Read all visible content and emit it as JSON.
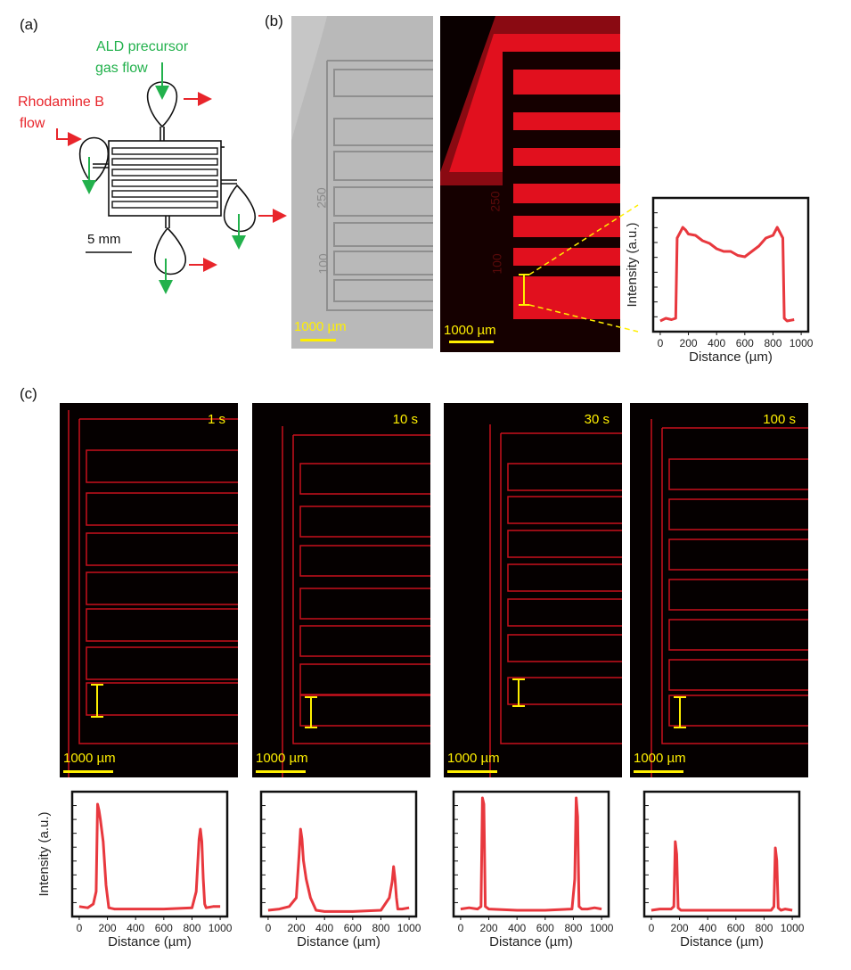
{
  "panel_labels": {
    "a": "(a)",
    "b": "(b)",
    "c": "(c)"
  },
  "panel_a": {
    "ald_label_line1": "ALD precursor",
    "ald_label_line2": "gas flow",
    "rhodamine_line1": "Rhodamine B",
    "rhodamine_line2": "flow",
    "scale_bar": "5 mm",
    "colors": {
      "ald": "#22b14c",
      "rhodamine": "#e8252b"
    }
  },
  "panel_b": {
    "scale_left": "1000 µm",
    "scale_right": "1000 µm",
    "engraved_top": "250",
    "engraved_bottom": "100",
    "engraved_top_right": "250",
    "engraved_bottom_right": "100"
  },
  "panel_c": {
    "images": [
      {
        "time": "1 s",
        "scale": "1000 µm"
      },
      {
        "time": "10 s",
        "scale": "1000 µm"
      },
      {
        "time": "30 s",
        "scale": "1000 µm"
      },
      {
        "time": "100 s",
        "scale": "1000 µm"
      }
    ]
  },
  "chart_data": [
    {
      "type": "line",
      "title": "",
      "xlabel": "Distance (µm)",
      "ylabel": "Intensity (a.u.)",
      "xlim": [
        -50,
        1050
      ],
      "xticks": [
        "0",
        "200",
        "400",
        "600",
        "800",
        "1000"
      ],
      "ylim": [
        0,
        1
      ],
      "series": [
        {
          "name": "",
          "x": [
            0,
            40,
            80,
            110,
            120,
            140,
            160,
            180,
            200,
            250,
            300,
            350,
            400,
            450,
            500,
            550,
            600,
            650,
            700,
            750,
            800,
            830,
            850,
            870,
            880,
            890,
            900,
            950
          ],
          "y": [
            0.08,
            0.1,
            0.09,
            0.1,
            0.7,
            0.74,
            0.78,
            0.76,
            0.73,
            0.72,
            0.68,
            0.66,
            0.62,
            0.6,
            0.6,
            0.57,
            0.56,
            0.6,
            0.64,
            0.7,
            0.72,
            0.78,
            0.74,
            0.7,
            0.1,
            0.09,
            0.08,
            0.09
          ]
        }
      ]
    },
    {
      "type": "line",
      "title": "1 s",
      "xlabel": "Distance (µm)",
      "ylabel": "Intensity (a.u.)",
      "xlim": [
        -50,
        1050
      ],
      "xticks": [
        "0",
        "200",
        "400",
        "600",
        "800",
        "1000"
      ],
      "ylim": [
        0,
        1
      ],
      "series": [
        {
          "name": "",
          "x": [
            0,
            60,
            100,
            120,
            130,
            140,
            150,
            170,
            190,
            210,
            250,
            400,
            600,
            800,
            830,
            850,
            860,
            870,
            880,
            890,
            900,
            950,
            1000
          ],
          "y": [
            0.08,
            0.07,
            0.1,
            0.2,
            0.9,
            0.85,
            0.78,
            0.6,
            0.25,
            0.07,
            0.06,
            0.06,
            0.06,
            0.07,
            0.2,
            0.62,
            0.7,
            0.6,
            0.3,
            0.1,
            0.07,
            0.08,
            0.08
          ]
        }
      ]
    },
    {
      "type": "line",
      "title": "10 s",
      "xlabel": "Distance (µm)",
      "ylabel": "Intensity (a.u.)",
      "xlim": [
        -50,
        1050
      ],
      "xticks": [
        "0",
        "200",
        "400",
        "600",
        "800",
        "1000"
      ],
      "ylim": [
        0,
        1
      ],
      "series": [
        {
          "name": "",
          "x": [
            0,
            80,
            150,
            200,
            220,
            230,
            240,
            250,
            270,
            300,
            340,
            400,
            600,
            800,
            860,
            880,
            890,
            900,
            910,
            920,
            950,
            1000
          ],
          "y": [
            0.05,
            0.06,
            0.08,
            0.15,
            0.5,
            0.7,
            0.62,
            0.45,
            0.3,
            0.15,
            0.05,
            0.04,
            0.04,
            0.05,
            0.15,
            0.28,
            0.4,
            0.3,
            0.15,
            0.06,
            0.06,
            0.07
          ]
        }
      ]
    },
    {
      "type": "line",
      "title": "30 s",
      "xlabel": "Distance (µm)",
      "ylabel": "Intensity (a.u.)",
      "xlim": [
        -50,
        1050
      ],
      "xticks": [
        "0",
        "200",
        "400",
        "600",
        "800",
        "1000"
      ],
      "ylim": [
        0,
        1
      ],
      "series": [
        {
          "name": "",
          "x": [
            0,
            60,
            120,
            145,
            155,
            165,
            175,
            200,
            400,
            600,
            790,
            810,
            820,
            830,
            840,
            860,
            900,
            950,
            1000
          ],
          "y": [
            0.06,
            0.07,
            0.06,
            0.08,
            0.95,
            0.9,
            0.08,
            0.06,
            0.05,
            0.05,
            0.06,
            0.3,
            0.95,
            0.8,
            0.08,
            0.06,
            0.06,
            0.07,
            0.06
          ]
        }
      ]
    },
    {
      "type": "line",
      "title": "100 s",
      "xlabel": "Distance (µm)",
      "ylabel": "Intensity (a.u.)",
      "xlim": [
        -50,
        1050
      ],
      "xticks": [
        "0",
        "200",
        "400",
        "600",
        "800",
        "1000"
      ],
      "ylim": [
        0,
        1
      ],
      "series": [
        {
          "name": "",
          "x": [
            0,
            60,
            140,
            160,
            170,
            180,
            190,
            210,
            400,
            600,
            850,
            870,
            880,
            890,
            900,
            920,
            950,
            1000
          ],
          "y": [
            0.05,
            0.06,
            0.06,
            0.08,
            0.6,
            0.5,
            0.07,
            0.05,
            0.05,
            0.05,
            0.05,
            0.08,
            0.55,
            0.45,
            0.07,
            0.05,
            0.06,
            0.05
          ]
        }
      ]
    }
  ]
}
